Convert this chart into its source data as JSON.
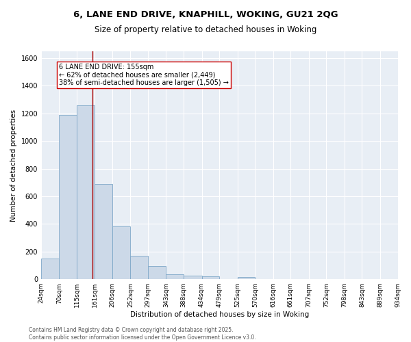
{
  "title_line1": "6, LANE END DRIVE, KNAPHILL, WOKING, GU21 2QG",
  "title_line2": "Size of property relative to detached houses in Woking",
  "xlabel": "Distribution of detached houses by size in Woking",
  "ylabel": "Number of detached properties",
  "bar_edges": [
    24,
    70,
    115,
    161,
    206,
    252,
    297,
    343,
    388,
    434,
    479,
    525,
    570,
    616,
    661,
    707,
    752,
    798,
    843,
    889,
    934
  ],
  "bar_heights": [
    150,
    1190,
    1260,
    690,
    380,
    170,
    95,
    35,
    25,
    20,
    0,
    15,
    0,
    0,
    0,
    0,
    0,
    0,
    0,
    0
  ],
  "bar_color": "#ccd9e8",
  "bar_edge_color": "#7fa8c8",
  "bar_linewidth": 0.6,
  "vline_x": 155,
  "vline_color": "#aa0000",
  "annotation_line1": "6 LANE END DRIVE: 155sqm",
  "annotation_line2": "← 62% of detached houses are smaller (2,449)",
  "annotation_line3": "38% of semi-detached houses are larger (1,505) →",
  "ylim": [
    0,
    1650
  ],
  "xlim": [
    24,
    934
  ],
  "tick_labels": [
    "24sqm",
    "70sqm",
    "115sqm",
    "161sqm",
    "206sqm",
    "252sqm",
    "297sqm",
    "343sqm",
    "388sqm",
    "434sqm",
    "479sqm",
    "525sqm",
    "570sqm",
    "616sqm",
    "661sqm",
    "707sqm",
    "752sqm",
    "798sqm",
    "843sqm",
    "889sqm",
    "934sqm"
  ],
  "tick_positions": [
    24,
    70,
    115,
    161,
    206,
    252,
    297,
    343,
    388,
    434,
    479,
    525,
    570,
    616,
    661,
    707,
    752,
    798,
    843,
    889,
    934
  ],
  "background_color": "#ffffff",
  "plot_bg_color": "#e8eef5",
  "grid_color": "#ffffff",
  "footer_text": "Contains HM Land Registry data © Crown copyright and database right 2025.\nContains public sector information licensed under the Open Government Licence v3.0.",
  "title_fontsize": 9.5,
  "subtitle_fontsize": 8.5,
  "axis_label_fontsize": 7.5,
  "tick_fontsize": 6.5,
  "annotation_fontsize": 7,
  "footer_fontsize": 5.5
}
